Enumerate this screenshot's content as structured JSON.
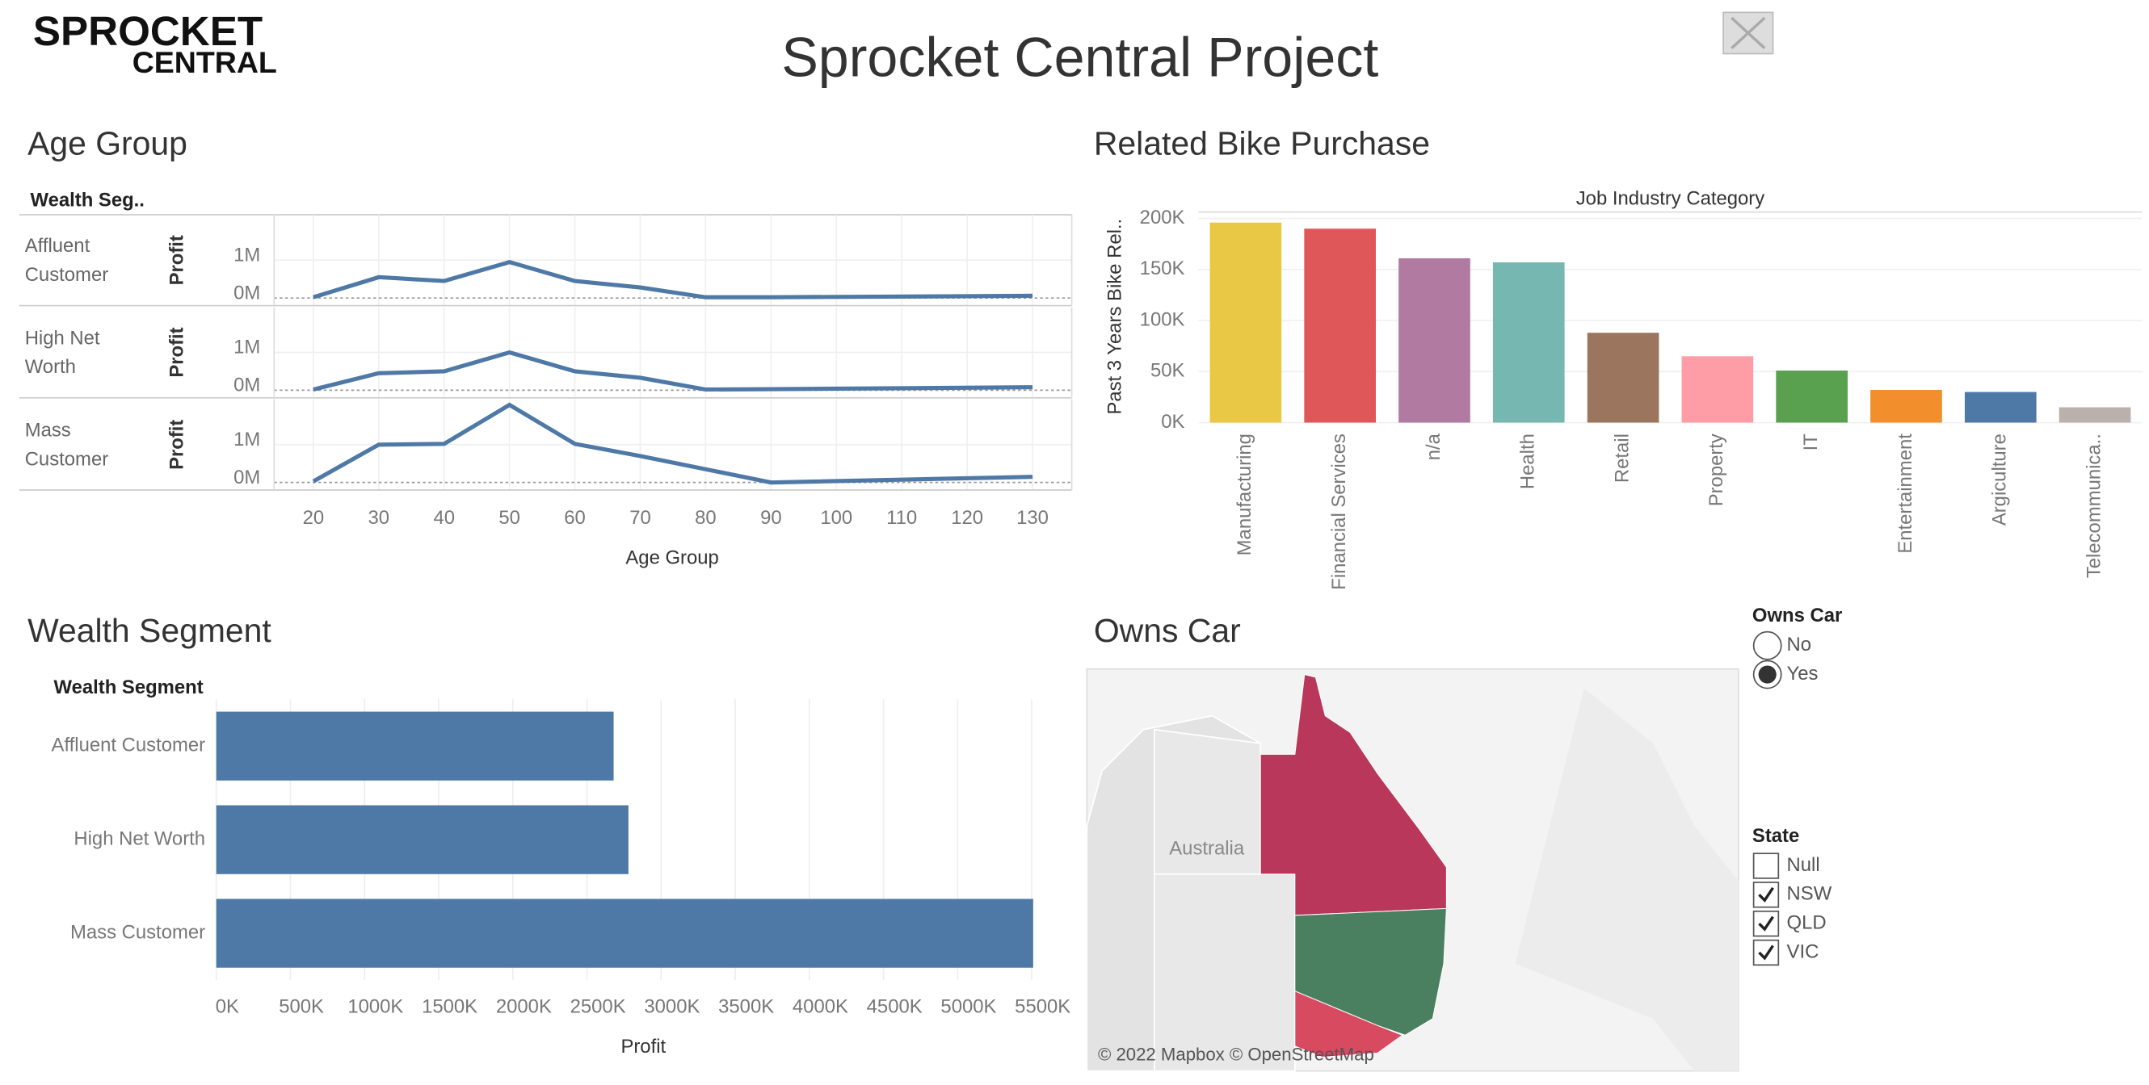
{
  "header": {
    "title": "Sprocket Central Project",
    "logo": [
      "SPROCKET",
      "CENTRAL"
    ]
  },
  "chart_data": [
    {
      "type": "line",
      "title": "Age Group",
      "facet_label": "Wealth Seg..",
      "y_label": "Profit",
      "x_label": "Age Group",
      "x": [
        20,
        30,
        40,
        50,
        60,
        70,
        80,
        90,
        130
      ],
      "xlim": [
        14,
        136
      ],
      "xticks": [
        20,
        30,
        40,
        50,
        60,
        70,
        80,
        90,
        100,
        110,
        120,
        130
      ],
      "ylim": [
        -200000,
        2200000
      ],
      "yticks": [
        {
          "value": 0,
          "label": "0M"
        },
        {
          "value": 1000000,
          "label": "1M"
        }
      ],
      "series": [
        {
          "name": "Affluent Customer",
          "color": "#4e79a7",
          "values": [
            20000,
            550000,
            450000,
            950000,
            450000,
            280000,
            20000,
            20000,
            60000
          ]
        },
        {
          "name": "High Net Worth",
          "color": "#4e79a7",
          "values": [
            20000,
            450000,
            500000,
            1000000,
            500000,
            330000,
            20000,
            30000,
            80000
          ]
        },
        {
          "name": "Mass Customer",
          "color": "#4e79a7",
          "values": [
            30000,
            1000000,
            1020000,
            2050000,
            1020000,
            700000,
            350000,
            0,
            150000
          ]
        }
      ]
    },
    {
      "type": "bar",
      "orientation": "vertical",
      "title": "Related Bike Purchase",
      "x_header": "Job Industry Category",
      "y_label": "Past 3 Years Bike Rel..",
      "categories": [
        "Manufacturing",
        "Financial Services",
        "n/a",
        "Health",
        "Retail",
        "Property",
        "IT",
        "Entertainment",
        "Argiculture",
        "Telecommunica.."
      ],
      "values": [
        196000,
        190000,
        161000,
        157000,
        88000,
        65000,
        51000,
        32000,
        30000,
        15000
      ],
      "colors": [
        "#e9c846",
        "#e05759",
        "#b07aa1",
        "#76b7b2",
        "#9c755f",
        "#ff9da7",
        "#59a14f",
        "#f28e2b",
        "#4e79a7",
        "#bab0ac"
      ],
      "ylim": [
        0,
        205000
      ],
      "yticks": [
        {
          "value": 0,
          "label": "0K"
        },
        {
          "value": 50000,
          "label": "50K"
        },
        {
          "value": 100000,
          "label": "100K"
        },
        {
          "value": 150000,
          "label": "150K"
        },
        {
          "value": 200000,
          "label": "200K"
        }
      ]
    },
    {
      "type": "bar",
      "orientation": "horizontal",
      "title": "Wealth Segment",
      "y_header": "Wealth Segment",
      "x_label": "Profit",
      "categories": [
        "Affluent Customer",
        "High Net Worth",
        "Mass Customer"
      ],
      "values": [
        2680000,
        2780000,
        5510000
      ],
      "color": "#4e79a7",
      "grid": true,
      "xlim": [
        0,
        5770000
      ],
      "xticks": [
        {
          "value": 0,
          "label": "0K"
        },
        {
          "value": 500000,
          "label": "500K"
        },
        {
          "value": 1000000,
          "label": "1000K"
        },
        {
          "value": 1500000,
          "label": "1500K"
        },
        {
          "value": 2000000,
          "label": "2000K"
        },
        {
          "value": 2500000,
          "label": "2500K"
        },
        {
          "value": 3000000,
          "label": "3000K"
        },
        {
          "value": 3500000,
          "label": "3500K"
        },
        {
          "value": 4000000,
          "label": "4000K"
        },
        {
          "value": 4500000,
          "label": "4500K"
        },
        {
          "value": 5000000,
          "label": "5000K"
        },
        {
          "value": 5500000,
          "label": "5500K"
        }
      ]
    }
  ],
  "map": {
    "title": "Owns Car",
    "label": "Australia",
    "attribution": "© 2022 Mapbox © OpenStreetMap"
  },
  "filters": {
    "owns_car": {
      "title": "Owns Car",
      "options": [
        "No",
        "Yes"
      ],
      "selected": 1
    },
    "state": {
      "title": "State",
      "options": [
        "Null",
        "NSW",
        "QLD",
        "VIC"
      ],
      "checked": [
        false,
        true,
        true,
        true
      ]
    }
  }
}
